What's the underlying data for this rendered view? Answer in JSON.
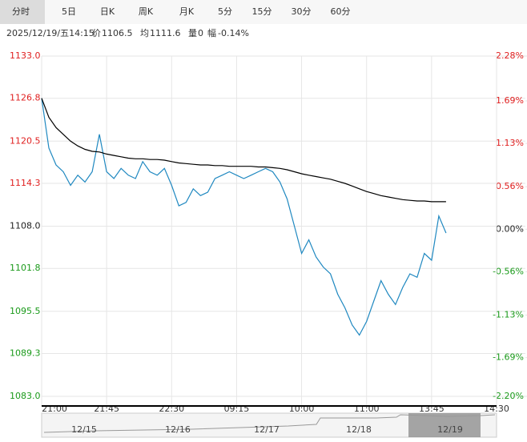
{
  "tabs": [
    "分时",
    "5日",
    "日K",
    "周K",
    "月K",
    "5分",
    "15分",
    "30分",
    "60分"
  ],
  "info": {
    "time": "2025/12/19/五14:15",
    "price_label": "价",
    "price": 1106.5,
    "avg_label": "均",
    "avg": 1111.6,
    "volume_label": "量",
    "volume": 0,
    "change_label": "幅",
    "change": "-0.14%"
  },
  "chart_data": {
    "type": "line",
    "x": [
      0,
      5,
      10,
      15,
      20,
      25,
      30,
      35,
      40,
      45,
      50,
      55,
      60,
      65,
      70,
      75,
      80,
      85,
      90,
      95,
      100,
      105,
      110,
      115,
      120,
      125,
      130,
      135,
      140,
      145,
      150,
      155,
      160,
      165,
      170,
      175,
      180,
      185,
      190,
      195,
      200,
      205,
      210,
      215,
      220,
      225,
      230,
      235,
      240,
      245,
      250,
      255,
      260,
      265,
      270,
      275,
      280
    ],
    "series": [
      {
        "color": "#1f88c0",
        "values": [
          1126.8,
          1119.5,
          1117.0,
          1116.0,
          1114.0,
          1115.5,
          1114.5,
          1116.0,
          1121.5,
          1116.0,
          1115.0,
          1116.5,
          1115.5,
          1115.0,
          1117.5,
          1116.0,
          1115.5,
          1116.5,
          1114.0,
          1111.0,
          1111.5,
          1113.5,
          1112.5,
          1113.0,
          1115.0,
          1115.5,
          1116.0,
          1115.5,
          1115.0,
          1115.5,
          1116.0,
          1116.5,
          1116.0,
          1114.5,
          1112.0,
          1108.0,
          1104.0,
          1106.0,
          1103.5,
          1102.0,
          1101.0,
          1098.0,
          1096.0,
          1093.5,
          1092.0,
          1094.0,
          1097.0,
          1100.0,
          1098.0,
          1096.5,
          1099.0,
          1101.0,
          1100.5,
          1104.0,
          1103.0,
          1109.5,
          1107.0
        ]
      },
      {
        "color": "#000000",
        "values": [
          1126.8,
          1124.0,
          1122.5,
          1121.5,
          1120.5,
          1119.8,
          1119.3,
          1119.0,
          1118.9,
          1118.6,
          1118.4,
          1118.2,
          1118.0,
          1117.9,
          1117.9,
          1117.8,
          1117.8,
          1117.7,
          1117.5,
          1117.3,
          1117.2,
          1117.1,
          1117.0,
          1117.0,
          1116.9,
          1116.9,
          1116.8,
          1116.8,
          1116.8,
          1116.8,
          1116.7,
          1116.7,
          1116.6,
          1116.5,
          1116.3,
          1116.0,
          1115.7,
          1115.5,
          1115.3,
          1115.1,
          1114.9,
          1114.6,
          1114.3,
          1113.9,
          1113.5,
          1113.1,
          1112.8,
          1112.5,
          1112.3,
          1112.1,
          1111.9,
          1111.8,
          1111.7,
          1111.7,
          1111.6,
          1111.6,
          1111.6
        ]
      }
    ],
    "xlim": [
      0,
      315
    ],
    "xticks": [
      {
        "value": 0,
        "label": "21:00"
      },
      {
        "value": 45,
        "label": "21:45"
      },
      {
        "value": 90,
        "label": "22:30"
      },
      {
        "value": 135,
        "label": "09:15"
      },
      {
        "value": 180,
        "label": "10:00"
      },
      {
        "value": 225,
        "label": "11:00"
      },
      {
        "value": 270,
        "label": "13:45"
      },
      {
        "value": 315,
        "label": "14:30"
      }
    ],
    "ylim": [
      1083.0,
      1133.0
    ],
    "yticks": [
      {
        "value": 1133.0,
        "label": "1133.0"
      },
      1126.8,
      1120.5,
      1114.3,
      {
        "value": 1108.0,
        "label": "1108.0"
      },
      1101.8,
      1095.5,
      1089.3,
      {
        "value": 1083.0,
        "label": "1083.0"
      }
    ],
    "y2lim": [
      -2.2,
      2.28
    ],
    "y2ticks": [
      {
        "value": 2.28,
        "label": "2.28%"
      },
      {
        "value": 1.69,
        "label": "1.69%"
      },
      {
        "value": 1.13,
        "label": "1.13%"
      },
      {
        "value": 0.56,
        "label": "0.56%"
      },
      {
        "value": 0,
        "label": "0.00%"
      },
      {
        "value": -0.56,
        "label": "-0.56%"
      },
      {
        "value": -1.13,
        "label": "-1.13%"
      },
      {
        "value": -1.69,
        "label": "-1.69%"
      },
      {
        "value": -2.2,
        "label": "-2.20%"
      }
    ],
    "up_color": "#e02020",
    "down_color": "#1a9a1a",
    "flat_color": "#222222",
    "grid": true
  },
  "navigator": {
    "labels": [
      "12/15",
      "12/16",
      "12/17",
      "12/18",
      "12/19"
    ]
  }
}
